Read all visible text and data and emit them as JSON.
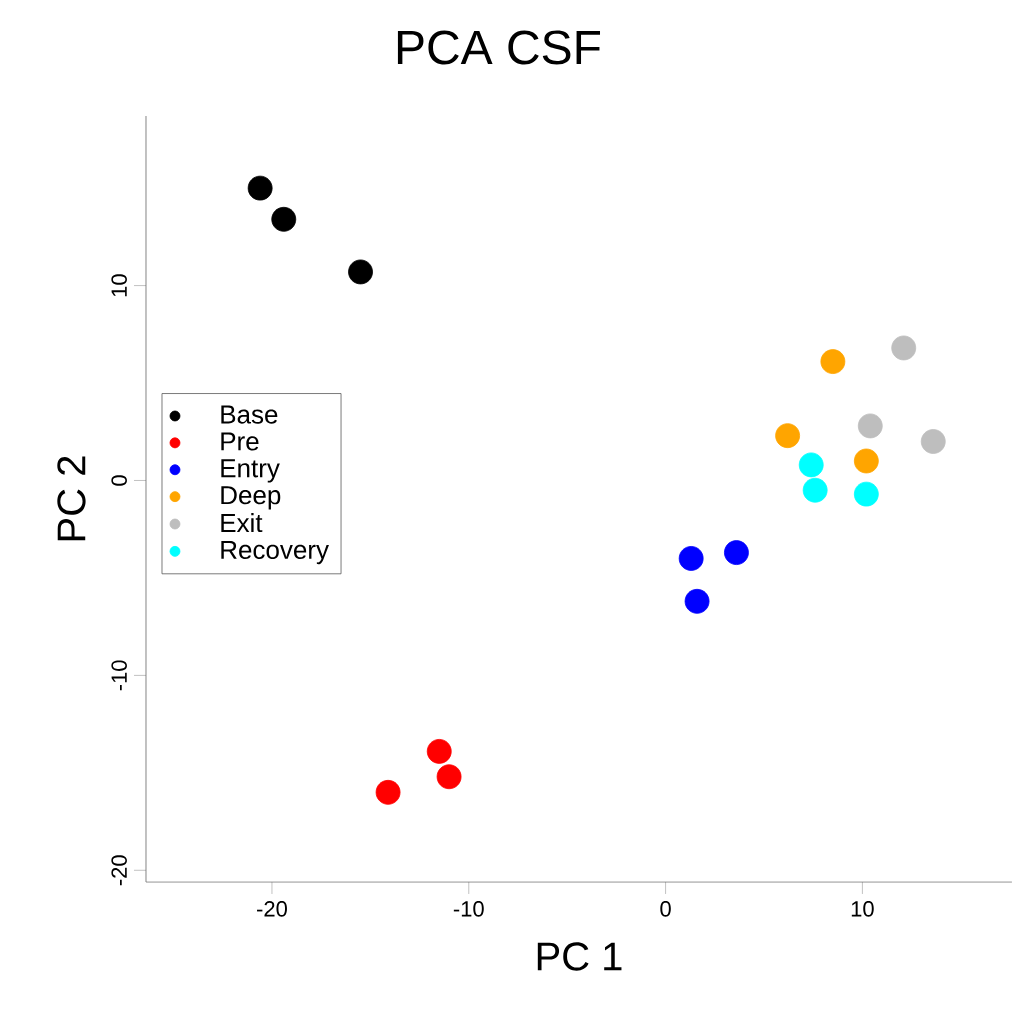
{
  "chart_data": {
    "type": "scatter",
    "title": "PCA CSF",
    "xlabel": "PC 1",
    "ylabel": "PC 2",
    "xlim": [
      -26.4,
      17.6
    ],
    "ylim": [
      -20.6,
      18.7
    ],
    "xticks": [
      -20,
      -10,
      0,
      10
    ],
    "yticks": [
      -20,
      -10,
      0,
      10
    ],
    "legend": "left",
    "marker": "circle",
    "series": [
      {
        "name": "Base",
        "color": "#000000",
        "x": [
          -20.6,
          -19.4,
          -15.5
        ],
        "values": [
          15.0,
          13.4,
          10.7
        ]
      },
      {
        "name": "Pre",
        "color": "#ff0000",
        "x": [
          -11.5,
          -11.0,
          -14.1
        ],
        "values": [
          -13.9,
          -15.2,
          -16.0
        ]
      },
      {
        "name": "Entry",
        "color": "#0000ff",
        "x": [
          1.3,
          3.6,
          1.6
        ],
        "values": [
          -4.0,
          -3.7,
          -6.2
        ]
      },
      {
        "name": "Deep",
        "color": "#ffa500",
        "x": [
          8.5,
          6.2,
          10.2
        ],
        "values": [
          6.1,
          2.3,
          1.0
        ]
      },
      {
        "name": "Exit",
        "color": "#bebebe",
        "x": [
          12.1,
          10.4,
          13.6
        ],
        "values": [
          6.8,
          2.8,
          2.0
        ]
      },
      {
        "name": "Recovery",
        "color": "#00ffff",
        "x": [
          7.4,
          7.6,
          10.2
        ],
        "values": [
          0.8,
          -0.5,
          -0.7
        ]
      }
    ]
  }
}
